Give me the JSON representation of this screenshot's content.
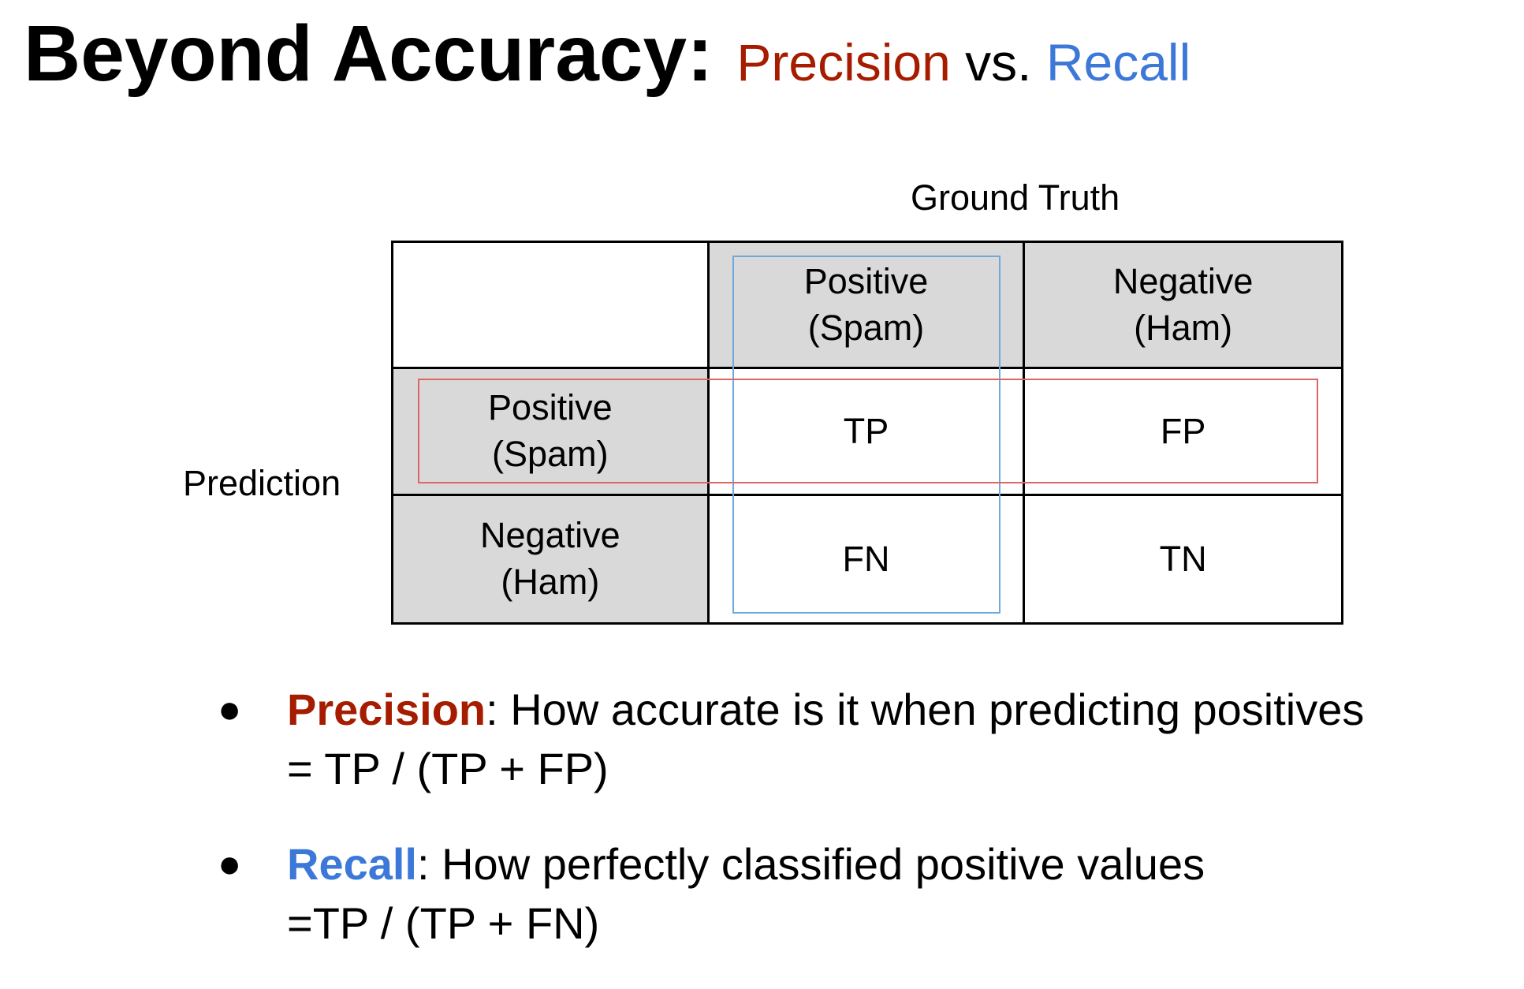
{
  "title": {
    "main": "Beyond Accuracy:",
    "precision": "Precision",
    "vs": "vs.",
    "recall": "Recall"
  },
  "axes": {
    "ground_truth": "Ground Truth",
    "prediction": "Prediction"
  },
  "matrix": {
    "col_headers": [
      "Positive\n(Spam)",
      "Negative\n(Ham)"
    ],
    "row_headers": [
      "Positive\n(Spam)",
      "Negative\n(Ham)"
    ],
    "cells": [
      [
        "TP",
        "FP"
      ],
      [
        "FN",
        "TN"
      ]
    ]
  },
  "bullets": [
    {
      "term": "Precision",
      "desc": ": How accurate is it when predicting positives",
      "formula": "= TP / (TP + FP)"
    },
    {
      "term": "Recall",
      "desc": ": How perfectly classified positive values",
      "formula": "=TP / (TP + FN)"
    }
  ],
  "colors": {
    "precision": "#a61c00",
    "recall": "#3c78d8",
    "precision_box": "#e06666",
    "recall_box": "#6fa8dc",
    "header_fill": "#d9d9d9"
  }
}
